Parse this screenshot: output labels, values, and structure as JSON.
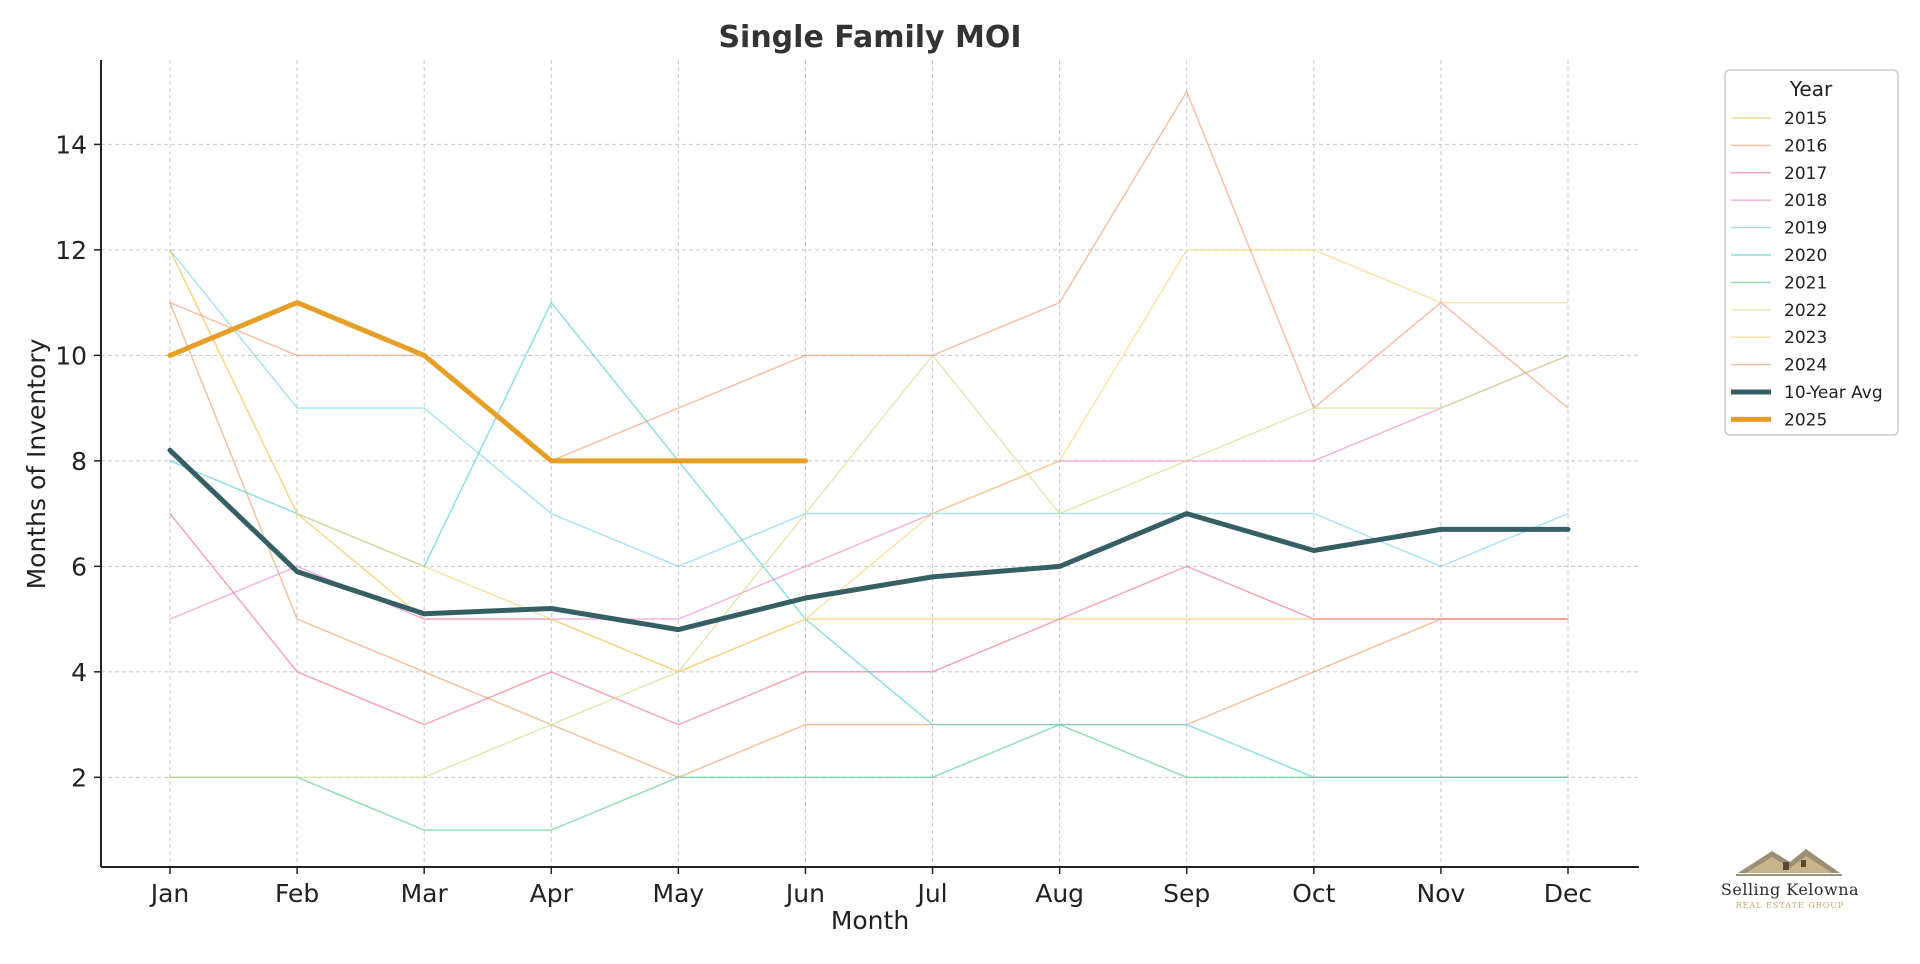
{
  "chart_data": {
    "type": "line",
    "title": "Single Family MOI",
    "xlabel": "Month",
    "ylabel": "Months of Inventory",
    "categories": [
      "Jan",
      "Feb",
      "Mar",
      "Apr",
      "May",
      "Jun",
      "Jul",
      "Aug",
      "Sep",
      "Oct",
      "Nov",
      "Dec"
    ],
    "ylim": [
      0.3,
      15.6
    ],
    "yticks": [
      2,
      4,
      6,
      8,
      10,
      12,
      14
    ],
    "grid": true,
    "legend": {
      "title": "Year",
      "placement": "outside right"
    },
    "series": [
      {
        "name": "2015",
        "color": "#f7c35c",
        "width": 1.4,
        "opacity": 0.7,
        "values": [
          12,
          7,
          5,
          5,
          4,
          5,
          5,
          5,
          5,
          5,
          5,
          5
        ]
      },
      {
        "name": "2016",
        "color": "#eda36e",
        "width": 1.4,
        "opacity": 0.7,
        "values": [
          11,
          5,
          4,
          3,
          2,
          3,
          3,
          3,
          3,
          4,
          5,
          5
        ]
      },
      {
        "name": "2017",
        "color": "#ec7a92",
        "width": 1.4,
        "opacity": 0.7,
        "values": [
          7,
          4,
          3,
          4,
          3,
          4,
          4,
          5,
          6,
          5,
          5,
          5
        ]
      },
      {
        "name": "2018",
        "color": "#f08bd0",
        "width": 1.4,
        "opacity": 0.7,
        "values": [
          5,
          6,
          5,
          5,
          5,
          6,
          7,
          8,
          8,
          8,
          9,
          10
        ]
      },
      {
        "name": "2019",
        "color": "#7fd3ee",
        "width": 1.4,
        "opacity": 0.7,
        "values": [
          12,
          9,
          9,
          7,
          6,
          7,
          7,
          7,
          7,
          7,
          6,
          7
        ]
      },
      {
        "name": "2020",
        "color": "#52d0d4",
        "width": 1.4,
        "opacity": 0.7,
        "values": [
          8,
          7,
          6,
          11,
          8,
          5,
          3,
          3,
          3,
          2,
          2,
          2
        ]
      },
      {
        "name": "2021",
        "color": "#5ccf8f",
        "width": 1.4,
        "opacity": 0.7,
        "values": [
          2,
          2,
          1,
          1,
          2,
          2,
          2,
          3,
          2,
          2,
          2,
          2
        ]
      },
      {
        "name": "2022",
        "color": "#cfe08a",
        "width": 1.4,
        "opacity": 0.7,
        "values": [
          2,
          2,
          2,
          3,
          4,
          7,
          10,
          7,
          8,
          9,
          9,
          10
        ]
      },
      {
        "name": "2023",
        "color": "#f7d67a",
        "width": 1.4,
        "opacity": 0.7,
        "values": [
          12,
          7,
          6,
          5,
          4,
          5,
          7,
          8,
          12,
          12,
          11,
          11
        ]
      },
      {
        "name": "2024",
        "color": "#f2a07c",
        "width": 1.4,
        "opacity": 0.7,
        "values": [
          11,
          10,
          10,
          8,
          9,
          10,
          10,
          11,
          15,
          9,
          11,
          9
        ]
      },
      {
        "name": "10-Year Avg",
        "color": "#355f64",
        "width": 5,
        "opacity": 1,
        "values": [
          8.2,
          5.9,
          5.1,
          5.2,
          4.8,
          5.4,
          5.8,
          6.0,
          7.0,
          6.3,
          6.7,
          6.7
        ]
      },
      {
        "name": "2025",
        "color": "#e69f26",
        "width": 5,
        "opacity": 1,
        "values": [
          10,
          11,
          10,
          8,
          8,
          8,
          null,
          null,
          null,
          null,
          null,
          null
        ]
      }
    ]
  },
  "logo": {
    "name": "Selling Kelowna",
    "subtitle": "REAL ESTATE GROUP",
    "icon": "house-roofline-logo-icon"
  }
}
